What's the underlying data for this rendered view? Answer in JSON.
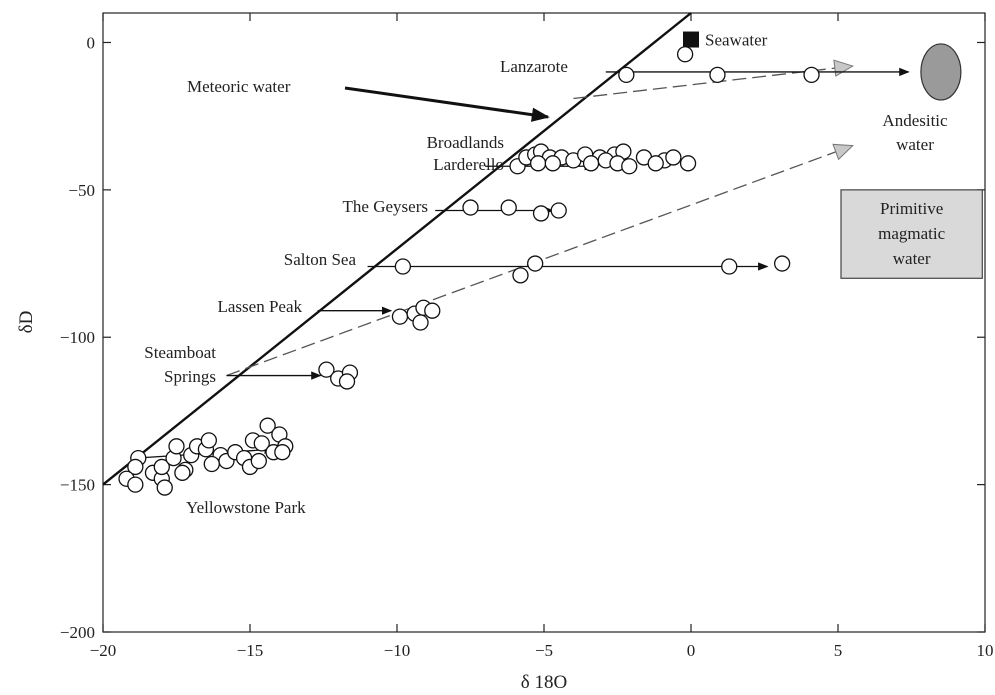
{
  "chart_data": {
    "type": "scatter",
    "title": "",
    "xlabel": "δ 18O",
    "ylabel": "δD",
    "xlim": [
      -20,
      10
    ],
    "ylim": [
      -200,
      10
    ],
    "xticks": [
      -20,
      -15,
      -10,
      -5,
      0,
      5,
      10
    ],
    "yticks": [
      -200,
      -150,
      -100,
      -50,
      0
    ],
    "xtick_labels": [
      "−20",
      "−15",
      "−10",
      "−5",
      "0",
      "5",
      "10"
    ],
    "ytick_labels": [
      "−200",
      "−150",
      "−100",
      "−50",
      "0"
    ],
    "grid": false,
    "meteoric_line": {
      "label": "Meteoric water",
      "points": [
        [
          -20,
          -150
        ],
        [
          0,
          10
        ]
      ]
    },
    "seawater": {
      "label": "Seawater",
      "x": 0,
      "y": 1
    },
    "andesitic_water": {
      "label_lines": [
        "Andesitic",
        "water"
      ],
      "x": 8.5,
      "y": -10
    },
    "primitive_magmatic_water": {
      "label_lines": [
        "Primitive",
        "magmatic",
        "water"
      ],
      "x_range": [
        5,
        9.5
      ],
      "y_range": [
        -80,
        -50
      ]
    },
    "mixing_lines": [
      {
        "from": [
          -4,
          -19
        ],
        "to": [
          5.5,
          -8
        ]
      },
      {
        "from": [
          -15.8,
          -113
        ],
        "to": [
          5.5,
          -35
        ]
      }
    ],
    "groups": [
      {
        "name": "Lanzarote",
        "label_lines": [
          "Lanzarote"
        ],
        "arrow": {
          "from": [
            -2.9,
            -10
          ],
          "to": [
            7.4,
            -10
          ]
        },
        "points": [
          [
            -0.2,
            -4
          ],
          [
            -2.2,
            -11
          ],
          [
            0.9,
            -11
          ],
          [
            4.1,
            -11
          ]
        ]
      },
      {
        "name": "Broadlands / Larderello",
        "label_lines": [
          "Broadlands",
          "Larderello"
        ],
        "arrow": {
          "from": [
            -7,
            -42
          ],
          "to": [
            -3.3,
            -42
          ]
        },
        "points": [
          [
            -5.9,
            -42
          ],
          [
            -5.6,
            -39
          ],
          [
            -5.3,
            -38
          ],
          [
            -5.1,
            -37
          ],
          [
            -4.8,
            -39
          ],
          [
            -4.4,
            -39
          ],
          [
            -4.0,
            -40
          ],
          [
            -3.6,
            -38
          ],
          [
            -3.1,
            -39
          ],
          [
            -2.6,
            -38
          ],
          [
            -2.3,
            -37
          ],
          [
            -1.6,
            -39
          ],
          [
            -0.9,
            -40
          ],
          [
            -0.6,
            -39
          ],
          [
            -0.1,
            -41
          ],
          [
            -5.2,
            -41
          ],
          [
            -4.7,
            -41
          ],
          [
            -3.4,
            -41
          ],
          [
            -2.9,
            -40
          ],
          [
            -2.5,
            -41
          ],
          [
            -2.1,
            -42
          ],
          [
            -1.2,
            -41
          ]
        ]
      },
      {
        "name": "The Geysers",
        "label_lines": [
          "The Geysers"
        ],
        "arrow": {
          "from": [
            -8.7,
            -57
          ],
          "to": [
            -4.7,
            -57
          ]
        },
        "points": [
          [
            -7.5,
            -56
          ],
          [
            -6.2,
            -56
          ],
          [
            -5.1,
            -58
          ],
          [
            -4.5,
            -57
          ]
        ]
      },
      {
        "name": "Salton Sea",
        "label_lines": [
          "Salton Sea"
        ],
        "arrow": {
          "from": [
            -11,
            -76
          ],
          "to": [
            2.6,
            -76
          ]
        },
        "points": [
          [
            -9.8,
            -76
          ],
          [
            -5.8,
            -79
          ],
          [
            -5.3,
            -75
          ],
          [
            1.3,
            -76
          ],
          [
            3.1,
            -75
          ]
        ]
      },
      {
        "name": "Lassen Peak",
        "label_lines": [
          "Lassen Peak"
        ],
        "arrow": {
          "from": [
            -12.7,
            -91
          ],
          "to": [
            -10.2,
            -91
          ]
        },
        "points": [
          [
            -9.9,
            -93
          ],
          [
            -9.4,
            -92
          ],
          [
            -9.1,
            -90
          ],
          [
            -8.8,
            -91
          ],
          [
            -9.2,
            -95
          ]
        ]
      },
      {
        "name": "Steamboat Springs",
        "label_lines": [
          "Steamboat",
          "Springs"
        ],
        "arrow": {
          "from": [
            -15.8,
            -113
          ],
          "to": [
            -12.6,
            -113
          ]
        },
        "points": [
          [
            -12.4,
            -111
          ],
          [
            -12.0,
            -114
          ],
          [
            -11.6,
            -112
          ],
          [
            -11.7,
            -115
          ]
        ]
      },
      {
        "name": "Yellowstone Park",
        "label_lines": [
          "Yellowstone Park"
        ],
        "arrow": {
          "from": [
            -18.9,
            -141
          ],
          "to": [
            -14.2,
            -138
          ]
        },
        "points": [
          [
            -18.8,
            -141
          ],
          [
            -18.9,
            -144
          ],
          [
            -19.2,
            -148
          ],
          [
            -18.9,
            -150
          ],
          [
            -18.3,
            -146
          ],
          [
            -18.0,
            -148
          ],
          [
            -17.9,
            -151
          ],
          [
            -18.0,
            -144
          ],
          [
            -17.6,
            -141
          ],
          [
            -17.5,
            -137
          ],
          [
            -17.2,
            -145
          ],
          [
            -17.0,
            -140
          ],
          [
            -16.8,
            -137
          ],
          [
            -16.5,
            -138
          ],
          [
            -16.4,
            -135
          ],
          [
            -16.0,
            -140
          ],
          [
            -15.8,
            -142
          ],
          [
            -15.5,
            -139
          ],
          [
            -15.2,
            -141
          ],
          [
            -14.9,
            -135
          ],
          [
            -14.6,
            -136
          ],
          [
            -14.4,
            -130
          ],
          [
            -14.2,
            -139
          ],
          [
            -14.0,
            -133
          ],
          [
            -13.8,
            -137
          ],
          [
            -13.9,
            -139
          ],
          [
            -15.0,
            -144
          ],
          [
            -16.3,
            -143
          ],
          [
            -17.3,
            -146
          ],
          [
            -14.7,
            -142
          ]
        ]
      }
    ]
  }
}
